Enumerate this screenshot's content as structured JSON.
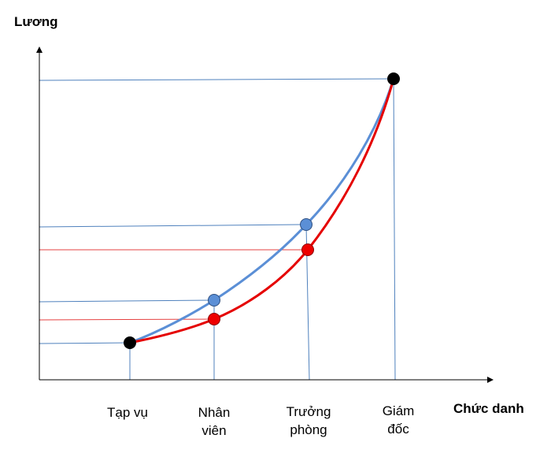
{
  "y_axis_title": "Lương",
  "x_axis_title": "Chức danh",
  "categories": [
    {
      "line1": "Tạp vụ",
      "line2": ""
    },
    {
      "line1": "Nhân",
      "line2": "viên"
    },
    {
      "line1": "Trưởng",
      "line2": "phòng"
    },
    {
      "line1": "Giám",
      "line2": "đốc"
    }
  ],
  "colors": {
    "axis": "#000000",
    "blue_curve": "#5b8fd6",
    "red_curve": "#e50000",
    "guide_line": "#4f81bd",
    "red_guide": "#e54040",
    "endpoint": "#000000"
  }
}
